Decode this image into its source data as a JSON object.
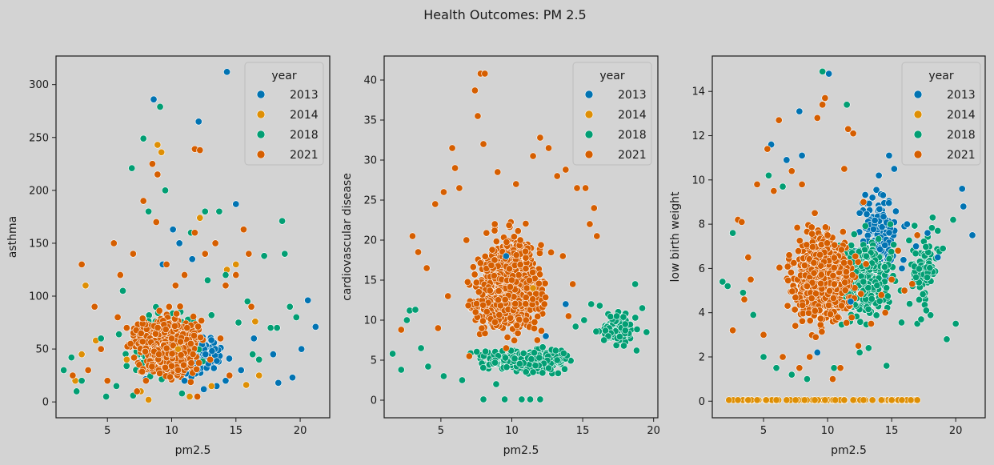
{
  "figure": {
    "title": "Health Outcomes: PM 2.5",
    "background": "#d3d3d3"
  },
  "legend": {
    "title": "year",
    "placement": "top-right",
    "entries": [
      {
        "label": "2013",
        "color": "#0173b2"
      },
      {
        "label": "2014",
        "color": "#de8f05"
      },
      {
        "label": "2018",
        "color": "#029e73"
      },
      {
        "label": "2021",
        "color": "#d55e00"
      }
    ]
  },
  "chart_data": [
    {
      "type": "scatter",
      "title": "",
      "xlabel": "pm2.5",
      "ylabel": "asthma",
      "xlim": [
        1.0,
        22.3
      ],
      "ylim": [
        -15,
        327
      ],
      "xticks": [
        5,
        10,
        15,
        20
      ],
      "yticks": [
        0,
        50,
        100,
        150,
        200,
        250,
        300
      ],
      "grid": false,
      "series": [
        {
          "name": "2013",
          "color": "#0173b2",
          "x": [
            14.3,
            8.6,
            12.1,
            10.1,
            11.6,
            15.0,
            10.6,
            14.2,
            15.4,
            18.3,
            19.4,
            20.1,
            20.6,
            21.2,
            13.5,
            12.5,
            17.9,
            16.4,
            9.3,
            11.0
          ],
          "y": [
            312,
            286,
            265,
            163,
            135,
            187,
            150,
            20,
            30,
            18,
            23,
            50,
            96,
            71,
            15,
            12,
            45,
            60,
            130,
            20
          ]
        },
        {
          "name": "2014",
          "color": "#de8f05",
          "x": [
            9.2,
            8.9,
            12.2,
            15.0,
            16.5,
            14.3,
            3.3,
            4.1,
            2.5,
            7.6,
            6.5,
            13.1,
            16.8,
            15.8,
            11.4,
            3.0,
            8.2,
            10.5
          ],
          "y": [
            236,
            243,
            174,
            130,
            76,
            125,
            110,
            58,
            20,
            10,
            40,
            15,
            25,
            16,
            5,
            45,
            2,
            50
          ]
        },
        {
          "name": "2018",
          "color": "#029e73",
          "x": [
            9.1,
            7.8,
            6.9,
            17.2,
            18.6,
            18.8,
            19.2,
            19.7,
            1.6,
            2.2,
            3.0,
            4.5,
            8.2,
            9.5,
            12.6,
            12.8,
            14.2,
            15.9,
            17.7,
            16.3,
            11.5,
            5.7,
            6.2,
            13.7,
            16.8,
            18.2,
            2.6,
            4.9,
            7.0,
            10.8,
            15.2,
            13.1
          ],
          "y": [
            279,
            249,
            221,
            138,
            171,
            140,
            90,
            80,
            30,
            42,
            20,
            60,
            180,
            200,
            180,
            115,
            120,
            95,
            70,
            45,
            160,
            15,
            105,
            180,
            40,
            70,
            10,
            5,
            6,
            8,
            75,
            82
          ]
        },
        {
          "name": "2021",
          "color": "#d55e00",
          "x": [
            11.8,
            12.2,
            8.5,
            8.9,
            3.0,
            4.0,
            5.5,
            6.0,
            7.0,
            7.8,
            8.8,
            9.6,
            10.3,
            11.0,
            11.8,
            12.6,
            13.4,
            14.2,
            15.0,
            15.6,
            16.0,
            10.0,
            9.0,
            6.5,
            4.5,
            2.3,
            3.5,
            5.0,
            8.0,
            10.5,
            13.0,
            14.5,
            7.3,
            12.0,
            16.2,
            5.8,
            6.8,
            9.8,
            11.2,
            13.8
          ],
          "y": [
            239,
            238,
            225,
            215,
            130,
            90,
            150,
            120,
            140,
            190,
            170,
            130,
            110,
            120,
            160,
            140,
            150,
            110,
            120,
            163,
            140,
            60,
            45,
            70,
            50,
            25,
            30,
            20,
            20,
            30,
            40,
            25,
            10,
            5,
            90,
            80,
            55,
            90,
            70,
            60
          ]
        }
      ]
    },
    {
      "type": "scatter",
      "title": "",
      "xlabel": "pm2.5",
      "ylabel": "cardiovascular disease",
      "xlim": [
        1.0,
        20.3
      ],
      "ylim": [
        -2.2,
        43.0
      ],
      "xticks": [
        5,
        10,
        15,
        20
      ],
      "yticks": [
        0,
        5,
        10,
        15,
        20,
        25,
        30,
        35,
        40
      ],
      "grid": false,
      "series": [
        {
          "name": "2013",
          "color": "#0173b2",
          "x": [
            13.8,
            12.4,
            9.6
          ],
          "y": [
            12,
            8,
            18
          ]
        },
        {
          "name": "2014",
          "color": "#de8f05",
          "x": [
            11.5
          ],
          "y": [
            14
          ]
        },
        {
          "name": "2018",
          "color": "#029e73",
          "x": [
            1.6,
            2.2,
            2.8,
            3.6,
            4.1,
            5.2,
            6.5,
            8.0,
            9.5,
            10.7,
            11.3,
            12.0,
            13.2,
            14.5,
            15.6,
            16.2,
            16.8,
            17.4,
            18.0,
            18.7,
            19.2,
            19.5,
            17.9,
            16.5,
            15.1,
            18.8,
            8.9,
            11.5,
            10.2,
            12.6,
            3.2,
            2.6
          ],
          "y": [
            5.8,
            3.8,
            11.2,
            6.5,
            4.2,
            3.0,
            2.5,
            0.1,
            0.1,
            0.1,
            0.1,
            0.1,
            5.0,
            9.2,
            12.0,
            11.8,
            8.0,
            10.5,
            9.5,
            14.5,
            11.5,
            8.5,
            6.8,
            7.5,
            10.0,
            6.2,
            2.0,
            3.5,
            5.2,
            4.0,
            11.3,
            10.0
          ]
        },
        {
          "name": "2021",
          "color": "#d55e00",
          "x": [
            7.8,
            8.1,
            7.4,
            7.6,
            5.8,
            6.0,
            6.3,
            8.0,
            9.0,
            10.3,
            11.5,
            12.0,
            12.6,
            13.2,
            13.8,
            14.6,
            15.2,
            15.5,
            15.8,
            16.0,
            3.0,
            3.4,
            4.0,
            4.6,
            5.2,
            2.2,
            6.8,
            8.8,
            10.0,
            11.0,
            12.3,
            13.6,
            14.3,
            4.8,
            9.6,
            11.8,
            14.0,
            5.5,
            7.0,
            10.6
          ],
          "y": [
            40.8,
            40.8,
            38.7,
            35.5,
            31.5,
            29.0,
            26.5,
            32.0,
            28.5,
            27.0,
            30.5,
            32.8,
            31.5,
            28.0,
            28.8,
            26.5,
            26.5,
            22.0,
            24.0,
            20.5,
            20.5,
            18.5,
            16.5,
            24.5,
            26.0,
            8.8,
            20.0,
            22.0,
            15.0,
            10.0,
            12.0,
            18.0,
            14.5,
            9.0,
            6.5,
            7.5,
            10.5,
            13.0,
            5.5,
            20.0
          ]
        }
      ]
    },
    {
      "type": "scatter",
      "title": "",
      "xlabel": "pm2.5",
      "ylabel": "low birth weight",
      "xlim": [
        1.0,
        22.3
      ],
      "ylim": [
        -0.75,
        15.6
      ],
      "xticks": [
        5,
        10,
        15,
        20
      ],
      "yticks": [
        0,
        2,
        4,
        6,
        8,
        10,
        12,
        14
      ],
      "grid": false,
      "series": [
        {
          "name": "2013",
          "color": "#0173b2",
          "x": [
            10.1,
            7.8,
            5.6,
            6.8,
            8.0,
            14.8,
            15.2,
            14.0,
            16.2,
            17.8,
            18.6,
            20.5,
            20.6,
            21.3,
            13.5,
            12.5,
            15.8,
            11.8,
            9.2,
            16.9
          ],
          "y": [
            14.8,
            13.1,
            11.6,
            10.9,
            11.1,
            11.1,
            10.5,
            10.2,
            8.0,
            7.6,
            6.5,
            9.6,
            8.8,
            7.5,
            9.2,
            8.5,
            6.0,
            4.5,
            2.2,
            7.0
          ]
        },
        {
          "name": "2014",
          "color": "#de8f05",
          "x": [
            2.3,
            3.0,
            3.8,
            4.5,
            5.2,
            6.0,
            6.8,
            7.5,
            8.2,
            9.0,
            9.8,
            10.6,
            11.3,
            12.0,
            12.8,
            13.5,
            14.2,
            15.0,
            15.8,
            16.5,
            17.0
          ],
          "y": [
            0.05,
            0.05,
            0.05,
            0.05,
            0.05,
            0.05,
            0.05,
            0.05,
            0.05,
            0.05,
            0.05,
            0.05,
            0.05,
            0.05,
            0.05,
            0.05,
            0.05,
            0.05,
            0.05,
            0.05,
            0.05
          ]
        },
        {
          "name": "2018",
          "color": "#029e73",
          "x": [
            9.6,
            11.5,
            1.8,
            2.2,
            2.6,
            3.4,
            4.2,
            5.0,
            6.0,
            7.2,
            8.4,
            10.5,
            12.5,
            14.6,
            15.7,
            16.4,
            17.0,
            17.7,
            18.2,
            18.6,
            19.0,
            19.3,
            19.8,
            20.0,
            17.3,
            16.9,
            14.9,
            13.2,
            6.5,
            5.4
          ],
          "y": [
            14.9,
            13.4,
            5.4,
            5.2,
            7.6,
            4.9,
            3.9,
            2.0,
            1.5,
            1.2,
            1.0,
            1.5,
            2.2,
            1.6,
            5.0,
            4.4,
            3.5,
            4.1,
            8.3,
            7.7,
            6.9,
            2.8,
            8.2,
            3.5,
            3.7,
            5.6,
            8.0,
            2.4,
            9.7,
            10.2
          ]
        },
        {
          "name": "2021",
          "color": "#d55e00",
          "x": [
            9.8,
            9.6,
            6.2,
            5.3,
            9.2,
            11.6,
            12.0,
            7.2,
            4.5,
            3.0,
            3.3,
            3.8,
            4.0,
            5.0,
            6.5,
            7.8,
            8.6,
            10.4,
            11.0,
            12.4,
            13.4,
            14.2,
            15.0,
            16.0,
            16.6,
            17.0,
            2.6,
            3.5,
            5.8,
            8.0,
            9.0,
            10.0,
            11.3,
            12.8,
            14.5,
            8.4,
            7.0,
            10.8,
            13.0,
            15.5
          ],
          "y": [
            13.7,
            13.4,
            12.7,
            11.4,
            12.8,
            12.3,
            12.1,
            10.4,
            9.8,
            8.2,
            8.1,
            6.5,
            5.5,
            3.0,
            2.0,
            1.5,
            2.0,
            1.0,
            1.5,
            2.5,
            3.5,
            4.8,
            5.5,
            5.0,
            5.3,
            7.5,
            3.2,
            4.6,
            9.5,
            9.8,
            8.5,
            7.5,
            10.5,
            9.0,
            4.0,
            5.2,
            6.6,
            3.8,
            6.2,
            6.8
          ]
        }
      ]
    }
  ]
}
